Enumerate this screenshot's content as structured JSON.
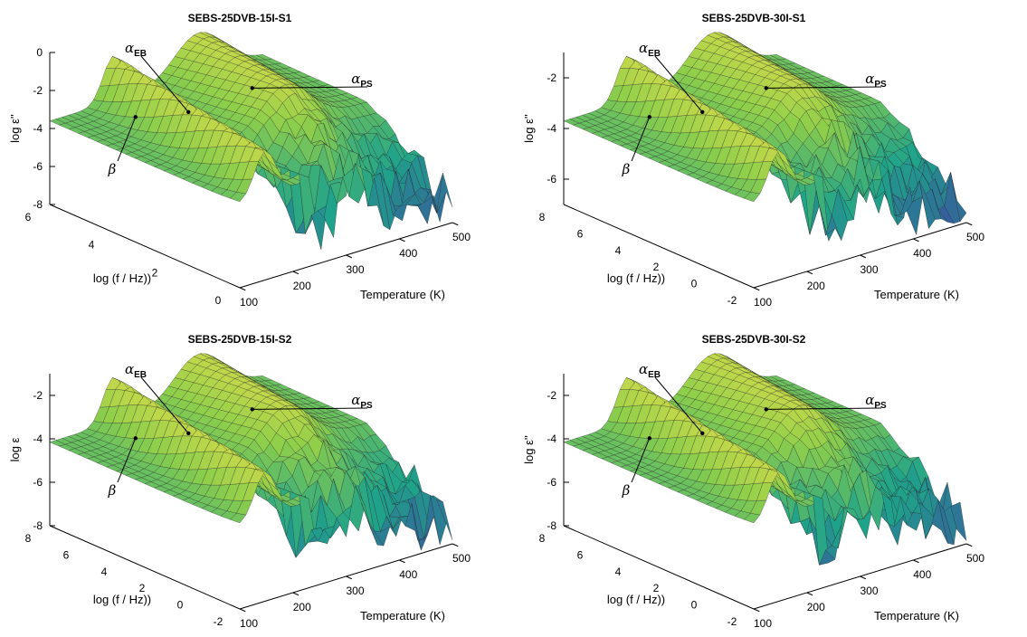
{
  "chart_data": [
    {
      "type": "surface",
      "title": "SEBS-25DVB-15I-S1",
      "xlabel": "Temperature (K)",
      "ylabel": "log (f / Hz))",
      "zlabel": "log ε''",
      "x_ticks": [
        "100",
        "200",
        "300",
        "400",
        "500"
      ],
      "y_ticks": [
        "0",
        "2",
        "4",
        "6"
      ],
      "z_ticks": [
        "0",
        "-2",
        "-4",
        "-6",
        "-8"
      ],
      "xlim": [
        100,
        500
      ],
      "ylim": [
        -1,
        7
      ],
      "zlim": [
        -8,
        0
      ],
      "annotations": [
        {
          "label": "α",
          "sub": "EB"
        },
        {
          "label": "α",
          "sub": "PS"
        },
        {
          "label": "β",
          "sub": ""
        }
      ],
      "colormap": [
        "#3a4fa0",
        "#1fa38a",
        "#8fcf4a",
        "#f4e04a"
      ]
    },
    {
      "type": "surface",
      "title": "SEBS-25DVB-30I-S1",
      "xlabel": "Temperature (K)",
      "ylabel": "log (f / Hz))",
      "zlabel": "log ε''",
      "x_ticks": [
        "100",
        "200",
        "300",
        "400",
        "500"
      ],
      "y_ticks": [
        "-2",
        "0",
        "2",
        "4",
        "6",
        "8"
      ],
      "z_ticks": [
        "-2",
        "-4",
        "-6"
      ],
      "xlim": [
        100,
        500
      ],
      "ylim": [
        -2,
        8
      ],
      "zlim": [
        -7,
        -1
      ],
      "annotations": [
        {
          "label": "α",
          "sub": "EB"
        },
        {
          "label": "α",
          "sub": "PS"
        },
        {
          "label": "β",
          "sub": ""
        }
      ],
      "colormap": [
        "#3a4fa0",
        "#1fa38a",
        "#8fcf4a",
        "#f4e04a"
      ]
    },
    {
      "type": "surface",
      "title": "SEBS-25DVB-15I-S2",
      "xlabel": "Temperature (K)",
      "ylabel": "log (f / Hz))",
      "zlabel": "log ε",
      "x_ticks": [
        "100",
        "200",
        "300",
        "400",
        "500"
      ],
      "y_ticks": [
        "-2",
        "0",
        "2",
        "4",
        "6",
        "8"
      ],
      "z_ticks": [
        "-2",
        "-4",
        "-6",
        "-8"
      ],
      "xlim": [
        100,
        500
      ],
      "ylim": [
        -2,
        8
      ],
      "zlim": [
        -8,
        -1
      ],
      "annotations": [
        {
          "label": "α",
          "sub": "EB"
        },
        {
          "label": "α",
          "sub": "PS"
        },
        {
          "label": "β",
          "sub": ""
        }
      ],
      "colormap": [
        "#3a4fa0",
        "#1fa38a",
        "#8fcf4a",
        "#f4e04a"
      ]
    },
    {
      "type": "surface",
      "title": "SEBS-25DVB-30I-S2",
      "xlabel": "Temperature (K)",
      "ylabel": "log (f / Hz))",
      "zlabel": "log ε''",
      "x_ticks": [
        "100",
        "200",
        "300",
        "400",
        "500"
      ],
      "y_ticks": [
        "-2",
        "0",
        "2",
        "4",
        "6",
        "8"
      ],
      "z_ticks": [
        "-2",
        "-4",
        "-6",
        "-8"
      ],
      "xlim": [
        100,
        500
      ],
      "ylim": [
        -2,
        8
      ],
      "zlim": [
        -8,
        -1
      ],
      "annotations": [
        {
          "label": "α",
          "sub": "EB"
        },
        {
          "label": "α",
          "sub": "PS"
        },
        {
          "label": "β",
          "sub": ""
        }
      ],
      "colormap": [
        "#3a4fa0",
        "#1fa38a",
        "#8fcf4a",
        "#f4e04a"
      ]
    }
  ]
}
